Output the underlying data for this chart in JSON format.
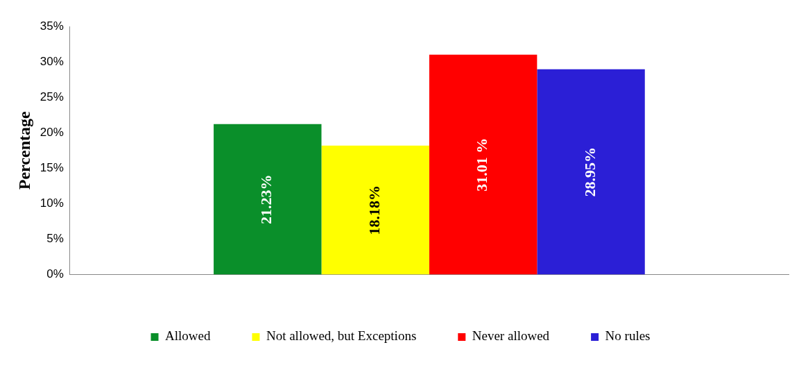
{
  "chart_data": {
    "type": "bar",
    "ylabel": "Percentage",
    "categories": [
      null
    ],
    "series": [
      {
        "name": "Allowed",
        "color": "#0a8f2a",
        "values": [
          21.23
        ],
        "value_labels": [
          "21.23%"
        ]
      },
      {
        "name": "Not allowed, but Exceptions",
        "color": "#ffff00",
        "values": [
          18.18
        ],
        "value_labels": [
          "18.18%"
        ]
      },
      {
        "name": "Never allowed",
        "color": "#ff0000",
        "values": [
          31.01
        ],
        "value_labels": [
          "31.01 %"
        ]
      },
      {
        "name": "No rules",
        "color": "#2b1fd6",
        "values": [
          28.95
        ],
        "value_labels": [
          "28.95%"
        ]
      }
    ],
    "ylim": [
      0,
      35
    ],
    "yticks": [
      {
        "value": 0,
        "label": "0%"
      },
      {
        "value": 5,
        "label": "5%"
      },
      {
        "value": 10,
        "label": "10%"
      },
      {
        "value": 15,
        "label": "15%"
      },
      {
        "value": 20,
        "label": "20%"
      },
      {
        "value": 25,
        "label": "25%"
      },
      {
        "value": 30,
        "label": "30%"
      },
      {
        "value": 35,
        "label": "35%"
      }
    ],
    "legend": "bottom"
  }
}
